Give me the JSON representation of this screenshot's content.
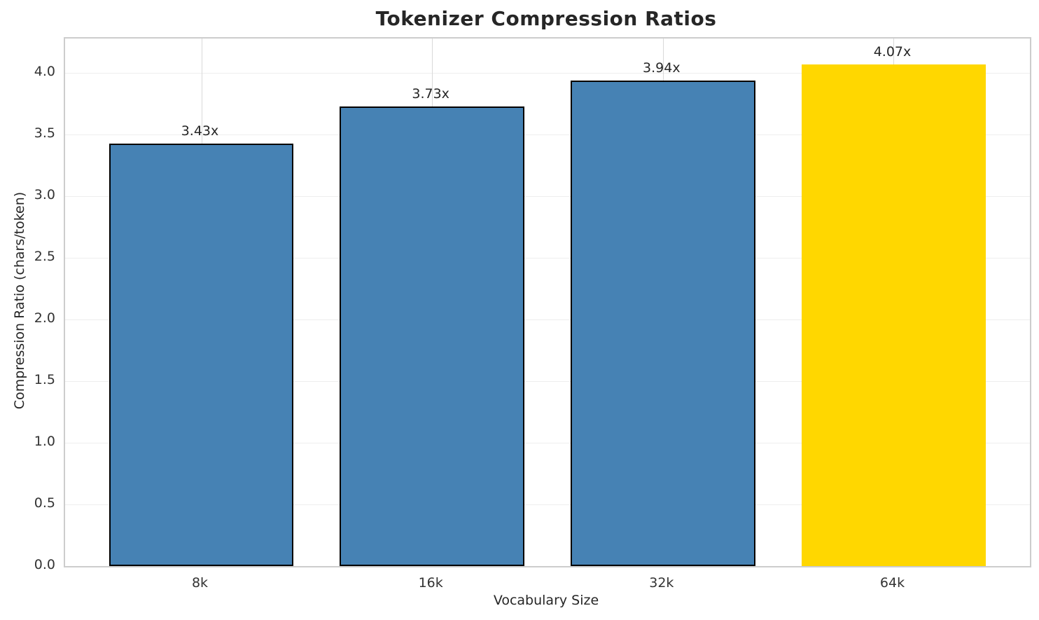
{
  "figure": {
    "background_color": "#ffffff"
  },
  "chart_data": {
    "type": "bar",
    "title": "Tokenizer Compression Ratios",
    "xlabel": "Vocabulary Size",
    "ylabel": "Compression Ratio (chars/token)",
    "categories": [
      "8k",
      "16k",
      "32k",
      "64k"
    ],
    "values": [
      3.43,
      3.73,
      3.94,
      4.07
    ],
    "value_labels": [
      "3.43x",
      "3.73x",
      "3.94x",
      "4.07x"
    ],
    "bar_colors": [
      "#4682b4",
      "#4682b4",
      "#4682b4",
      "#ffd700"
    ],
    "bar_edge_visible": [
      true,
      true,
      true,
      false
    ],
    "bar_edge_color": "#000000",
    "bar_width_units": 0.8,
    "xlim": [
      -0.59,
      3.59
    ],
    "ylim": [
      0,
      4.28
    ],
    "yticks": [
      0.0,
      0.5,
      1.0,
      1.5,
      2.0,
      2.5,
      3.0,
      3.5,
      4.0
    ],
    "ytick_labels": [
      "0.0",
      "0.5",
      "1.0",
      "1.5",
      "2.0",
      "2.5",
      "3.0",
      "3.5",
      "4.0"
    ],
    "grid": true,
    "legend": "none",
    "highlight_color": "#ffd700",
    "primary_color": "#4682b4"
  }
}
